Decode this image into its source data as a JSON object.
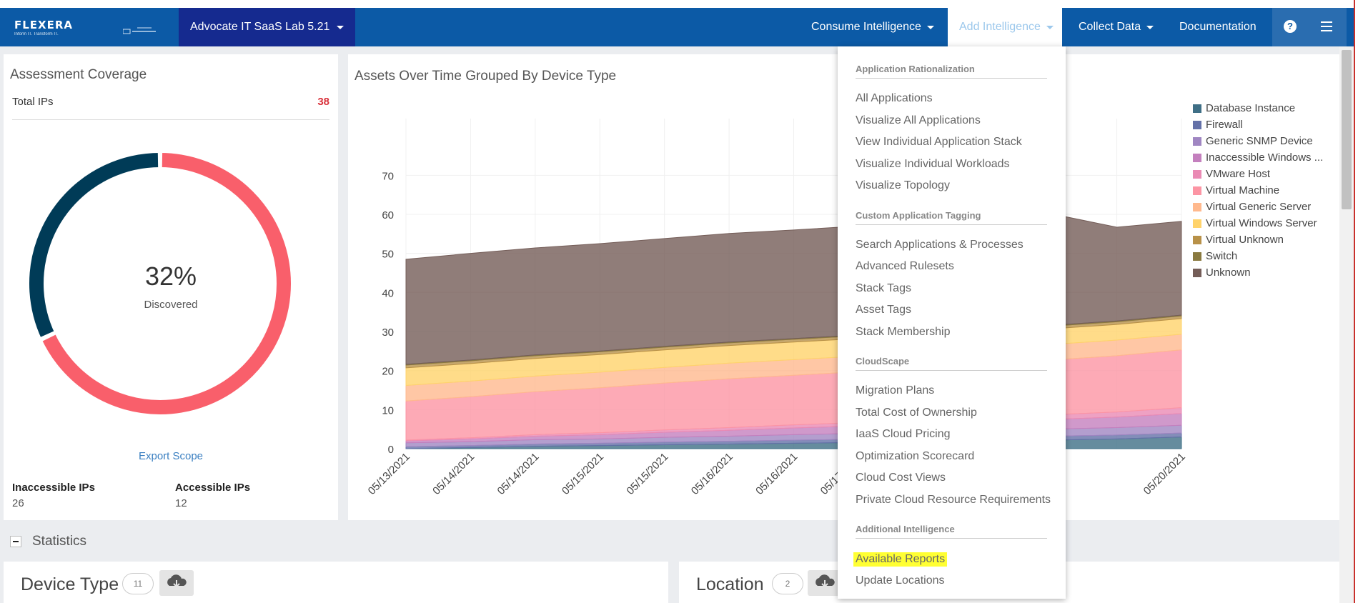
{
  "navbar": {
    "brand": "FLEXERA",
    "brand_tagline": "Inform IT. Transform IT.",
    "lab_selector": "Advocate IT SaaS Lab 5.21",
    "menu": [
      {
        "label": "Consume Intelligence"
      },
      {
        "label": "Add Intelligence"
      },
      {
        "label": "Collect Data"
      },
      {
        "label": "Documentation"
      }
    ],
    "help_icon": "question-circle-icon",
    "menu_icon": "hamburger-icon"
  },
  "coverage": {
    "title": "Assessment Coverage",
    "total_label": "Total IPs",
    "total_value": "38",
    "percent": "32%",
    "percent_value": 0.32,
    "discovered_label": "Discovered",
    "export_label": "Export Scope",
    "inaccessible_label": "Inaccessible IPs",
    "inaccessible_value": "26",
    "accessible_label": "Accessible IPs",
    "accessible_value": "12",
    "colors": {
      "discovered": "#003b57",
      "undiscovered": "#f95f6b"
    }
  },
  "chart": {
    "title": "Assets Over Time Grouped By Device Type"
  },
  "chart_data": {
    "type": "area",
    "stacked": true,
    "x": [
      "05/13/2021",
      "05/14/2021",
      "05/14/2021",
      "05/15/2021",
      "05/15/2021",
      "05/16/2021",
      "05/16/2021",
      "05/17/2021",
      "",
      "",
      "",
      "",
      "05/20/2021"
    ],
    "ylim": [
      0,
      75
    ],
    "yticks": [
      0,
      10,
      20,
      30,
      40,
      50,
      60,
      70
    ],
    "grid": true,
    "legend_position": "right",
    "series": [
      {
        "name": "Database Instance",
        "color": "#3f6f86",
        "values": [
          0,
          0.3,
          0.6,
          0.8,
          1,
          1.2,
          1.4,
          1.6,
          1.8,
          2,
          2.2,
          2.5,
          3
        ]
      },
      {
        "name": "Firewall",
        "color": "#6471a8",
        "values": [
          0.5,
          0.5,
          0.6,
          0.6,
          0.7,
          0.7,
          0.8,
          0.8,
          0.9,
          0.9,
          1,
          1,
          1
        ]
      },
      {
        "name": "Generic SNMP Device",
        "color": "#a086c2",
        "values": [
          1,
          1,
          1.1,
          1.1,
          1.2,
          1.3,
          1.4,
          1.5,
          1.6,
          1.7,
          1.8,
          1.9,
          2
        ]
      },
      {
        "name": "Inaccessible Windows ...",
        "color": "#c480be",
        "values": [
          0.5,
          0.7,
          0.9,
          1.1,
          1.3,
          1.5,
          1.7,
          1.9,
          2.1,
          2.3,
          2.5,
          2.7,
          3
        ]
      },
      {
        "name": "VMware Host",
        "color": "#ea8ab4",
        "values": [
          0.2,
          0.3,
          0.4,
          0.5,
          0.6,
          0.7,
          0.8,
          0.9,
          1,
          1.1,
          1.2,
          1.3,
          1.5
        ]
      },
      {
        "name": "Virtual Machine",
        "color": "#fc95a4",
        "values": [
          10,
          10.5,
          11,
          11.5,
          12,
          12.5,
          12.7,
          13,
          13.3,
          13.6,
          14,
          14.4,
          14.8
        ]
      },
      {
        "name": "Virtual Generic Server",
        "color": "#ffb98e",
        "values": [
          4,
          4,
          4,
          4,
          4,
          4,
          4,
          4,
          4,
          4,
          4,
          4,
          4
        ]
      },
      {
        "name": "Virtual Windows Server",
        "color": "#ffd36b",
        "values": [
          4.5,
          4.5,
          4.5,
          4.5,
          4.5,
          4.5,
          4.5,
          4.5,
          4.5,
          4.5,
          4,
          4,
          4
        ]
      },
      {
        "name": "Virtual Unknown",
        "color": "#b89148",
        "values": [
          0.7,
          0.7,
          0.7,
          0.7,
          0.7,
          0.7,
          0.7,
          0.7,
          0.7,
          0.7,
          0.7,
          0.7,
          0.7
        ]
      },
      {
        "name": "Switch",
        "color": "#8a7a40",
        "values": [
          0.2,
          0.2,
          0.2,
          0.2,
          0.2,
          0.2,
          0.2,
          0.2,
          0.2,
          0.2,
          0.2,
          0.2,
          0.2
        ]
      },
      {
        "name": "Unknown",
        "color": "#745d58",
        "values": [
          26.9,
          27.3,
          27.4,
          27.5,
          27.6,
          27.8,
          27.8,
          27.9,
          28.1,
          28.2,
          28.5,
          24,
          24
        ]
      }
    ]
  },
  "dropdown": {
    "sections": [
      {
        "title": "Application Rationalization",
        "items": [
          "All Applications",
          "Visualize All Applications",
          "View Individual Application Stack",
          "Visualize Individual Workloads",
          "Visualize Topology"
        ]
      },
      {
        "title": "Custom Application Tagging",
        "items": [
          "Search Applications & Processes",
          "Advanced Rulesets",
          "Stack Tags",
          "Asset Tags",
          "Stack Membership"
        ]
      },
      {
        "title": "CloudScape",
        "items": [
          "Migration Plans",
          "Total Cost of Ownership",
          "IaaS Cloud Pricing",
          "Optimization Scorecard",
          "Cloud Cost Views",
          "Private Cloud Resource Requirements"
        ]
      },
      {
        "title": "Additional Intelligence",
        "items": [
          "Available Reports",
          "Update Locations"
        ]
      }
    ]
  },
  "statistics": {
    "label": "Statistics",
    "device_type": {
      "title": "Device Type",
      "count": "11"
    },
    "location": {
      "title": "Location",
      "count": "2"
    },
    "download_icon": "cloud-download-icon"
  }
}
